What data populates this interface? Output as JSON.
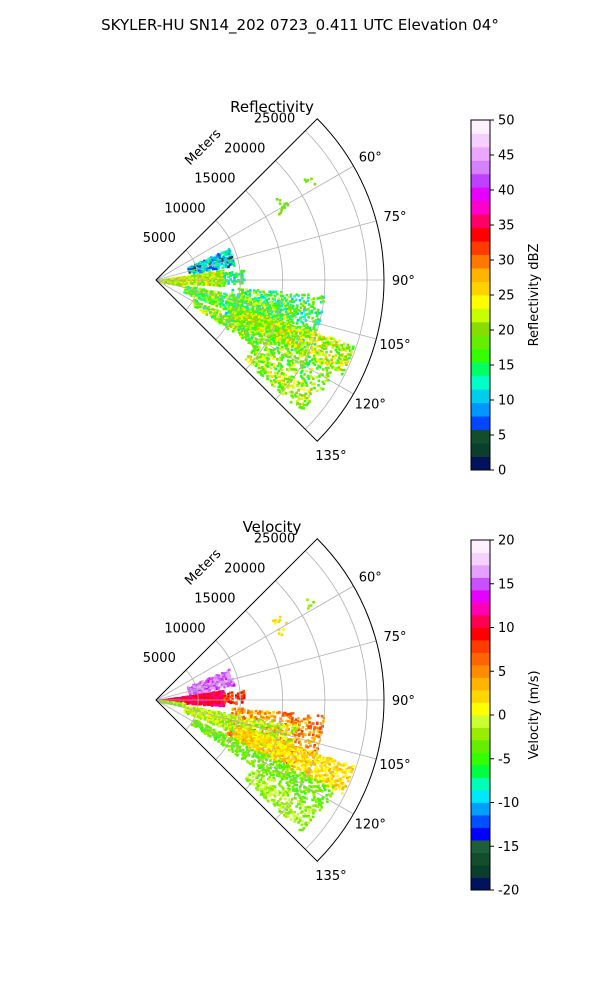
{
  "figure": {
    "suptitle": "SKYLER-HU  SN14_202  0723_0.411 UTC Elevation 04°"
  },
  "chart_data": [
    {
      "type": "heatmap",
      "subtype": "polar-sector (radar PPI)",
      "title": "Reflectivity",
      "radial_label": "Meters",
      "radial_ticks": [
        5000,
        10000,
        15000,
        20000,
        25000
      ],
      "r_max": 27000,
      "azimuth_ticks": [
        "60°",
        "75°",
        "90°",
        "105°",
        "120°",
        "135°"
      ],
      "azimuth_tick_values": [
        60,
        75,
        90,
        105,
        120,
        135
      ],
      "azimuth_range": [
        45,
        135
      ],
      "grid": true,
      "colorbar": {
        "label": "Reflectivity dBZ",
        "min": 0,
        "max": 50,
        "ticks": [
          "0",
          "5",
          "10",
          "15",
          "20",
          "25",
          "30",
          "35",
          "40",
          "45",
          "50"
        ],
        "colors": [
          "#03125c",
          "#0a3f2e",
          "#144d2c",
          "#0047ff",
          "#0096ff",
          "#00ccee",
          "#00ffc8",
          "#00ff66",
          "#33ff00",
          "#66ee00",
          "#88dd00",
          "#c8ff00",
          "#ffff00",
          "#ffd200",
          "#ffb400",
          "#ff7800",
          "#ff3c00",
          "#ff0000",
          "#ff0066",
          "#ff00cc",
          "#e600ff",
          "#bf40ff",
          "#d580ff",
          "#eba6ff",
          "#f5d0ff",
          "#fdf0ff"
        ]
      },
      "echo_regions": [
        {
          "az": [
            66,
            78
          ],
          "r": [
            4000,
            9500
          ],
          "value_range": [
            5,
            15
          ],
          "density": 0.55
        },
        {
          "az": [
            81,
            94
          ],
          "r": [
            300,
            8000
          ],
          "value_range": [
            16,
            28
          ],
          "density": 0.8
        },
        {
          "az": [
            83,
            92
          ],
          "r": [
            8000,
            10500
          ],
          "value_range": [
            10,
            18
          ],
          "density": 0.45
        },
        {
          "az": [
            94,
            101
          ],
          "r": [
            300,
            3500
          ],
          "value_range": [
            15,
            26
          ],
          "density": 0.6
        },
        {
          "az": [
            95,
            115
          ],
          "r": [
            9000,
            20000
          ],
          "value_range": [
            10,
            22
          ],
          "density": 0.45
        },
        {
          "az": [
            100,
            112
          ],
          "r": [
            3500,
            17000
          ],
          "value_range": [
            12,
            24
          ],
          "density": 0.55
        },
        {
          "az": [
            108,
            117
          ],
          "r": [
            10000,
            24500
          ],
          "value_range": [
            15,
            28
          ],
          "density": 0.75
        },
        {
          "az": [
            116,
            124
          ],
          "r": [
            5000,
            23500
          ],
          "value_range": [
            14,
            24
          ],
          "density": 0.5
        },
        {
          "az": [
            124,
            132
          ],
          "r": [
            14000,
            23000
          ],
          "value_range": [
            15,
            26
          ],
          "density": 0.5
        },
        {
          "az": [
            55,
            62
          ],
          "r": [
            16500,
            18000
          ],
          "value_range": [
            17,
            21
          ],
          "density": 0.2
        },
        {
          "az": [
            55,
            58
          ],
          "r": [
            21000,
            22000
          ],
          "value_range": [
            18,
            20
          ],
          "density": 0.15
        }
      ]
    },
    {
      "type": "heatmap",
      "subtype": "polar-sector (radar PPI)",
      "title": "Velocity",
      "radial_label": "Meters",
      "radial_ticks": [
        5000,
        10000,
        15000,
        20000,
        25000
      ],
      "r_max": 27000,
      "azimuth_ticks": [
        "60°",
        "75°",
        "90°",
        "105°",
        "120°",
        "135°"
      ],
      "azimuth_tick_values": [
        60,
        75,
        90,
        105,
        120,
        135
      ],
      "azimuth_range": [
        45,
        135
      ],
      "grid": true,
      "colorbar": {
        "label": "Velocity (m/s)",
        "min": -20,
        "max": 20,
        "ticks": [
          "-20",
          "-15",
          "-10",
          "-5",
          "0",
          "5",
          "10",
          "15",
          "20"
        ],
        "colors": [
          "#03125c",
          "#0a3f2e",
          "#144d2c",
          "#1e5e3a",
          "#0000ff",
          "#0050ff",
          "#00a0ff",
          "#00e6ff",
          "#00ffb4",
          "#00ff40",
          "#33ff00",
          "#66ee00",
          "#99ee00",
          "#ccff33",
          "#ffff00",
          "#ffd700",
          "#ffb400",
          "#ff8c00",
          "#ff6400",
          "#ff3c00",
          "#ff0000",
          "#ff0050",
          "#ff00b4",
          "#e600ff",
          "#c850ff",
          "#e6a0ff",
          "#f5d2ff",
          "#fdf0ff"
        ]
      },
      "echo_regions": [
        {
          "az": [
            66,
            78
          ],
          "r": [
            4000,
            9500
          ],
          "value_range": [
            14,
            17
          ],
          "density": 0.55
        },
        {
          "az": [
            81,
            94
          ],
          "r": [
            300,
            8000
          ],
          "value_range": [
            9,
            12
          ],
          "density": 0.85
        },
        {
          "az": [
            83,
            92
          ],
          "r": [
            8000,
            10500
          ],
          "value_range": [
            6,
            10
          ],
          "density": 0.45
        },
        {
          "az": [
            94,
            101
          ],
          "r": [
            300,
            3500
          ],
          "value_range": [
            -4,
            0
          ],
          "density": 0.6
        },
        {
          "az": [
            95,
            115
          ],
          "r": [
            9000,
            20000
          ],
          "value_range": [
            2,
            8
          ],
          "density": 0.45
        },
        {
          "az": [
            100,
            112
          ],
          "r": [
            3500,
            17000
          ],
          "value_range": [
            -4,
            2
          ],
          "density": 0.55
        },
        {
          "az": [
            108,
            117
          ],
          "r": [
            10000,
            24500
          ],
          "value_range": [
            0,
            4
          ],
          "density": 0.75
        },
        {
          "az": [
            116,
            124
          ],
          "r": [
            5000,
            23500
          ],
          "value_range": [
            -5,
            -2
          ],
          "density": 0.5
        },
        {
          "az": [
            124,
            132
          ],
          "r": [
            14000,
            23000
          ],
          "value_range": [
            -4,
            0
          ],
          "density": 0.5
        },
        {
          "az": [
            55,
            62
          ],
          "r": [
            16500,
            18000
          ],
          "value_range": [
            1,
            3
          ],
          "density": 0.2
        },
        {
          "az": [
            55,
            58
          ],
          "r": [
            21000,
            22000
          ],
          "value_range": [
            -3,
            -1
          ],
          "density": 0.15
        }
      ]
    }
  ]
}
